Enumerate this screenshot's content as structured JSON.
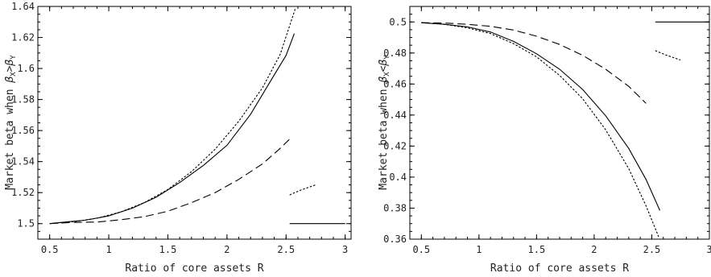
{
  "chart_data": [
    {
      "type": "line",
      "xlabel": "Ratio of core assets R",
      "ylabel": "Market beta when β_X>β_Y",
      "ylabel_parts": {
        "prefix": "Market beta when ",
        "b1": "β",
        "s1": "X",
        "op": ">",
        "b2": "β",
        "s2": "Y"
      },
      "xlim": [
        0.4,
        3.05
      ],
      "ylim": [
        1.49,
        1.64
      ],
      "xticks": [
        "0.5",
        "1",
        "1.5",
        "2",
        "2.5",
        "3"
      ],
      "xtick_values": [
        0.5,
        1,
        1.5,
        2,
        2.5,
        3
      ],
      "yticks": [
        "1.5",
        "1.52",
        "1.54",
        "1.56",
        "1.58",
        "1.6",
        "1.62",
        "1.64"
      ],
      "ytick_values": [
        1.5,
        1.52,
        1.54,
        1.56,
        1.58,
        1.6,
        1.62,
        1.64
      ],
      "series": [
        {
          "style": "solid",
          "segments": [
            [
              [
                0.5,
                1.5
              ],
              [
                0.65,
                1.5012
              ],
              [
                0.8,
                1.5022
              ],
              [
                1.0,
                1.505
              ],
              [
                1.2,
                1.51
              ],
              [
                1.4,
                1.517
              ],
              [
                1.6,
                1.5265
              ],
              [
                1.8,
                1.5375
              ],
              [
                2.0,
                1.5505
              ],
              [
                2.2,
                1.5705
              ],
              [
                2.35,
                1.5895
              ],
              [
                2.5,
                1.6085
              ],
              [
                2.57,
                1.6225
              ]
            ],
            [
              [
                2.53,
                1.5
              ],
              [
                3.0,
                1.5
              ]
            ]
          ]
        },
        {
          "style": "dotted",
          "segments": [
            [
              [
                0.5,
                1.5
              ],
              [
                0.7,
                1.5012
              ],
              [
                0.9,
                1.5035
              ],
              [
                1.1,
                1.5075
              ],
              [
                1.3,
                1.5135
              ],
              [
                1.5,
                1.522
              ],
              [
                1.7,
                1.5335
              ],
              [
                1.9,
                1.548
              ],
              [
                2.1,
                1.566
              ],
              [
                2.3,
                1.5875
              ],
              [
                2.45,
                1.609
              ],
              [
                2.58,
                1.639
              ]
            ],
            [
              [
                2.53,
                1.5185
              ],
              [
                2.62,
                1.5215
              ],
              [
                2.75,
                1.525
              ]
            ]
          ]
        },
        {
          "style": "dashed",
          "segments": [
            [
              [
                0.5,
                1.5
              ],
              [
                0.7,
                1.5008
              ],
              [
                0.9,
                1.501
              ],
              [
                1.1,
                1.5025
              ],
              [
                1.3,
                1.5045
              ],
              [
                1.5,
                1.508
              ],
              [
                1.7,
                1.5135
              ],
              [
                1.9,
                1.52
              ],
              [
                2.1,
                1.5285
              ],
              [
                2.3,
                1.5385
              ],
              [
                2.45,
                1.5485
              ],
              [
                2.53,
                1.5545
              ]
            ]
          ]
        }
      ]
    },
    {
      "type": "line",
      "xlabel": "Ratio of core assets R",
      "ylabel": "Market beta when β_X<β_Y",
      "ylabel_parts": {
        "prefix": "Market beta when ",
        "b1": "β",
        "s1": "X",
        "op": "<",
        "b2": "β",
        "s2": "Y"
      },
      "xlim": [
        0.4,
        3.0
      ],
      "ylim": [
        0.36,
        0.51
      ],
      "xticks": [
        "0.5",
        "1",
        "1.5",
        "2",
        "2.5",
        "3"
      ],
      "xtick_values": [
        0.5,
        1,
        1.5,
        2,
        2.5,
        3
      ],
      "yticks": [
        "0.36",
        "0.38",
        "0.4",
        "0.42",
        "0.44",
        "0.46",
        "0.48",
        "0.5"
      ],
      "ytick_values": [
        0.36,
        0.38,
        0.4,
        0.42,
        0.44,
        0.46,
        0.48,
        0.5
      ],
      "series": [
        {
          "style": "solid",
          "segments": [
            [
              [
                0.5,
                0.4995
              ],
              [
                0.7,
                0.4985
              ],
              [
                0.9,
                0.4968
              ],
              [
                1.1,
                0.4935
              ],
              [
                1.3,
                0.4875
              ],
              [
                1.5,
                0.4795
              ],
              [
                1.7,
                0.4695
              ],
              [
                1.9,
                0.4565
              ],
              [
                2.1,
                0.4395
              ],
              [
                2.3,
                0.4185
              ],
              [
                2.45,
                0.3985
              ],
              [
                2.57,
                0.3785
              ]
            ],
            [
              [
                2.53,
                0.5
              ],
              [
                3.0,
                0.5
              ]
            ]
          ]
        },
        {
          "style": "dotted",
          "segments": [
            [
              [
                0.5,
                0.4995
              ],
              [
                0.7,
                0.4985
              ],
              [
                0.9,
                0.4962
              ],
              [
                1.1,
                0.4925
              ],
              [
                1.3,
                0.486
              ],
              [
                1.5,
                0.4775
              ],
              [
                1.7,
                0.4655
              ],
              [
                1.9,
                0.4505
              ],
              [
                2.1,
                0.4305
              ],
              [
                2.3,
                0.4055
              ],
              [
                2.45,
                0.3815
              ],
              [
                2.56,
                0.3615
              ]
            ],
            [
              [
                2.53,
                0.4815
              ],
              [
                2.63,
                0.4785
              ],
              [
                2.75,
                0.4755
              ]
            ]
          ]
        },
        {
          "style": "dashed",
          "segments": [
            [
              [
                0.5,
                0.4995
              ],
              [
                0.7,
                0.4993
              ],
              [
                0.9,
                0.4985
              ],
              [
                1.1,
                0.4972
              ],
              [
                1.3,
                0.4948
              ],
              [
                1.5,
                0.4908
              ],
              [
                1.7,
                0.4855
              ],
              [
                1.9,
                0.4785
              ],
              [
                2.1,
                0.4695
              ],
              [
                2.3,
                0.4585
              ],
              [
                2.45,
                0.4475
              ]
            ]
          ]
        }
      ]
    }
  ]
}
